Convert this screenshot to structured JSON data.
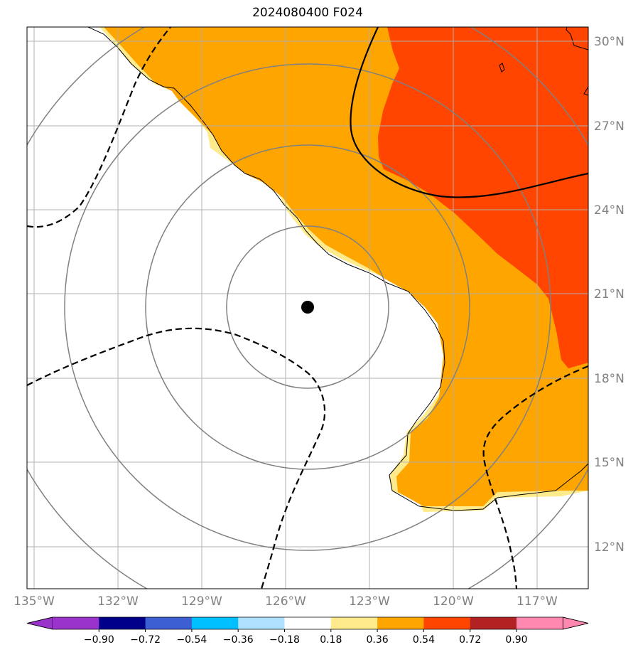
{
  "title": "2024080400 F024",
  "longitude_labels": [
    "135°W",
    "132°W",
    "129°W",
    "126°W",
    "123°W",
    "120°W",
    "117°W"
  ],
  "latitude_labels": [
    "30°N",
    "27°N",
    "24°N",
    "21°N",
    "18°N",
    "15°N",
    "12°N"
  ],
  "colorbar": {
    "levels": [
      "−0.90",
      "−0.72",
      "−0.54",
      "−0.36",
      "−0.18",
      "0.18",
      "0.36",
      "0.54",
      "0.72",
      "0.90"
    ],
    "colors": [
      "#9933cc",
      "#00008b",
      "#3c5fd4",
      "#00bfff",
      "#b0e0ff",
      "#ffffff",
      "#ffeb8c",
      "#ffa500",
      "#ff4500",
      "#b22222",
      "#ff88b0"
    ]
  },
  "storm_center": {
    "lon": -125.3,
    "lat": 20.5
  },
  "range_rings": 4,
  "fill_colors": {
    "light": "#ffeb8c",
    "orange": "#ffa500",
    "red": "#ff4500"
  }
}
